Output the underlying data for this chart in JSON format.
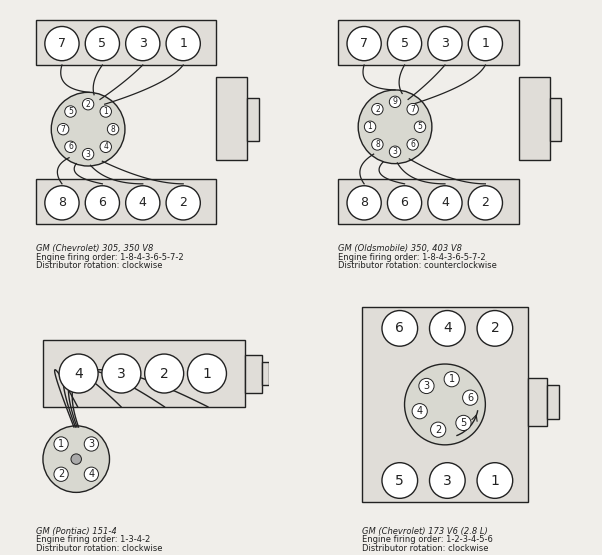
{
  "bg": "#f0eeea",
  "lc": "#222222",
  "cf": "#ffffff",
  "dist_fill": "#d8d8d0",
  "block_fill": "#e0ddd8",
  "captions": [
    [
      "GM (Chevrolet) 305, 350 V8",
      "Engine firing order: 1-8-4-3-6-5-7-2",
      "Distributor rotation: clockwise"
    ],
    [
      "GM (Oldsmobile) 350, 403 V8",
      "Engine firing order: 1-8-4-3-6-5-7-2",
      "Distributor rotation: counterclockwise"
    ],
    [
      "GM (Pontiac) 151-4",
      "Engine firing order: 1-3-4-2",
      "Distributor rotation: clockwise"
    ],
    [
      "GM (Chevrolet) 173 V6 (2.8 L)",
      "Engine firing order: 1-2-3-4-5-6",
      "Distributor rotation: clockwise"
    ]
  ]
}
